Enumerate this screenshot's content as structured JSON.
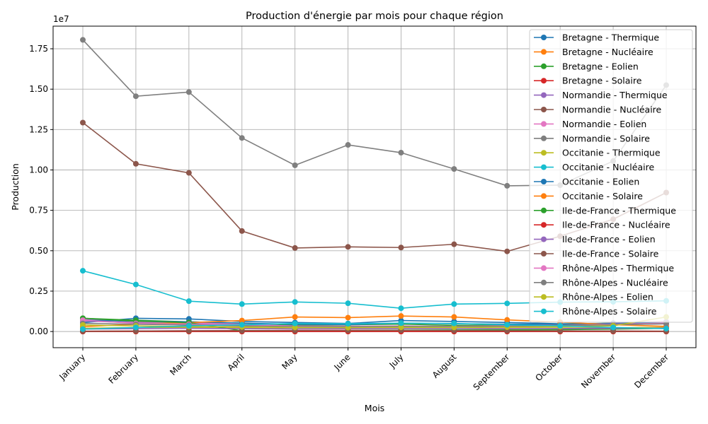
{
  "chart_data": {
    "type": "line",
    "title": "Production d'énergie par mois pour chaque région",
    "xlabel": "Mois",
    "ylabel": "Production",
    "y_scale_label": "1e7",
    "ylim": [
      -1000000,
      18900000
    ],
    "yticks": [
      0,
      2500000,
      5000000,
      7500000,
      10000000,
      12500000,
      15000000,
      17500000
    ],
    "ytick_labels": [
      "0.00",
      "0.25",
      "0.50",
      "0.75",
      "1.00",
      "1.25",
      "1.50",
      "1.75"
    ],
    "grid": true,
    "legend_position": "top-right",
    "categories": [
      "January",
      "February",
      "March",
      "April",
      "May",
      "June",
      "July",
      "August",
      "September",
      "October",
      "November",
      "December"
    ],
    "series": [
      {
        "name": "Bretagne - Thermique",
        "color": "#1f77b4",
        "values": [
          550000,
          820000,
          780000,
          620000,
          560000,
          500000,
          680000,
          620000,
          560000,
          480000,
          500000,
          520000
        ]
      },
      {
        "name": "Bretagne - Nucléaire",
        "color": "#ff7f0e",
        "values": [
          0,
          0,
          0,
          0,
          0,
          0,
          0,
          0,
          0,
          0,
          0,
          0
        ]
      },
      {
        "name": "Bretagne - Eolien",
        "color": "#2ca02c",
        "values": [
          820000,
          700000,
          600000,
          520000,
          400000,
          420000,
          460000,
          380000,
          400000,
          450000,
          520000,
          600000
        ]
      },
      {
        "name": "Bretagne - Solaire",
        "color": "#d62728",
        "values": [
          20000,
          30000,
          50000,
          60000,
          70000,
          75000,
          80000,
          70000,
          60000,
          40000,
          25000,
          20000
        ]
      },
      {
        "name": "Normandie - Thermique",
        "color": "#9467bd",
        "values": [
          650000,
          550000,
          500000,
          420000,
          350000,
          320000,
          330000,
          300000,
          320000,
          360000,
          420000,
          480000
        ]
      },
      {
        "name": "Normandie - Nucléaire",
        "color": "#8c564b",
        "values": [
          12930000,
          10380000,
          9820000,
          6220000,
          5170000,
          5240000,
          5200000,
          5400000,
          4960000,
          5900000,
          6950000,
          8600000
        ]
      },
      {
        "name": "Normandie - Eolien",
        "color": "#e377c2",
        "values": [
          780000,
          600000,
          550000,
          450000,
          330000,
          330000,
          350000,
          320000,
          360000,
          420000,
          520000,
          620000
        ]
      },
      {
        "name": "Normandie - Solaire",
        "color": "#7f7f7f",
        "values": [
          18050000,
          14560000,
          14820000,
          11980000,
          10290000,
          11550000,
          11070000,
          10060000,
          9020000,
          9060000,
          10550000,
          15250000
        ]
      },
      {
        "name": "Occitanie - Thermique",
        "color": "#bcbd22",
        "values": [
          200000,
          250000,
          260000,
          220000,
          180000,
          170000,
          180000,
          170000,
          200000,
          220000,
          240000,
          260000
        ]
      },
      {
        "name": "Occitanie - Nucléaire",
        "color": "#17becf",
        "values": [
          3760000,
          2910000,
          1880000,
          1700000,
          1830000,
          1750000,
          1440000,
          1700000,
          1740000,
          1820000,
          1840000,
          1900000
        ]
      },
      {
        "name": "Occitanie - Eolien",
        "color": "#1f77b4",
        "values": [
          700000,
          650000,
          600000,
          520000,
          450000,
          430000,
          520000,
          480000,
          460000,
          450000,
          500000,
          560000
        ]
      },
      {
        "name": "Occitanie - Solaire",
        "color": "#ff7f0e",
        "values": [
          300000,
          450000,
          550000,
          680000,
          900000,
          860000,
          960000,
          900000,
          720000,
          580000,
          420000,
          320000
        ]
      },
      {
        "name": "Ile-de-France - Thermique",
        "color": "#2ca02c",
        "values": [
          820000,
          650000,
          550000,
          50000,
          50000,
          60000,
          80000,
          90000,
          100000,
          120000,
          150000,
          200000
        ]
      },
      {
        "name": "Ile-de-France - Nucléaire",
        "color": "#d62728",
        "values": [
          0,
          0,
          0,
          0,
          0,
          0,
          0,
          0,
          0,
          0,
          0,
          0
        ]
      },
      {
        "name": "Ile-de-France - Eolien",
        "color": "#9467bd",
        "values": [
          150000,
          180000,
          200000,
          180000,
          160000,
          170000,
          180000,
          170000,
          180000,
          190000,
          200000,
          210000
        ]
      },
      {
        "name": "Ile-de-France - Solaire",
        "color": "#8c564b",
        "values": [
          20000,
          30000,
          40000,
          50000,
          60000,
          65000,
          70000,
          60000,
          50000,
          40000,
          30000,
          20000
        ]
      },
      {
        "name": "Rhône-Alpes - Thermique",
        "color": "#e377c2",
        "values": [
          700000,
          500000,
          450000,
          380000,
          300000,
          280000,
          300000,
          290000,
          320000,
          380000,
          450000,
          520000
        ]
      },
      {
        "name": "Rhône-Alpes - Nucléaire",
        "color": "#7f7f7f",
        "values": [
          500000,
          450000,
          400000,
          350000,
          300000,
          300000,
          320000,
          310000,
          330000,
          380000,
          420000,
          480000
        ]
      },
      {
        "name": "Rhône-Alpes - Eolien",
        "color": "#bcbd22",
        "values": [
          400000,
          350000,
          300000,
          280000,
          250000,
          240000,
          260000,
          250000,
          270000,
          300000,
          350000,
          900000
        ]
      },
      {
        "name": "Rhône-Alpes - Solaire",
        "color": "#17becf",
        "values": [
          150000,
          250000,
          350000,
          420000,
          500000,
          480000,
          520000,
          500000,
          420000,
          350000,
          250000,
          180000
        ]
      }
    ]
  }
}
